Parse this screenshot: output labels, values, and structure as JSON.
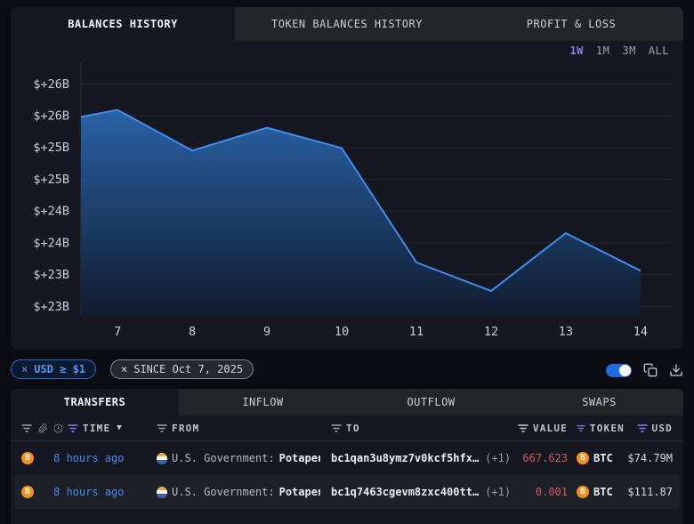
{
  "chart_card": {
    "tabs": [
      {
        "label": "BALANCES HISTORY",
        "active": true
      },
      {
        "label": "TOKEN BALANCES HISTORY",
        "active": false
      },
      {
        "label": "PROFIT & LOSS",
        "active": false
      }
    ],
    "ranges": [
      {
        "label": "1W",
        "active": true
      },
      {
        "label": "1M",
        "active": false
      },
      {
        "label": "3M",
        "active": false
      },
      {
        "label": "ALL",
        "active": false
      }
    ]
  },
  "chart_data": {
    "type": "area",
    "x": [
      6.51,
      7,
      8,
      9,
      10,
      11,
      12,
      13,
      14
    ],
    "values": [
      25.68,
      25.79,
      25.15,
      25.51,
      25.19,
      23.39,
      22.94,
      23.85,
      23.26
    ],
    "unit": "USD billions",
    "x_ticks": [
      7,
      8,
      9,
      10,
      11,
      12,
      13,
      14
    ],
    "x_tick_labels": [
      "7",
      "8",
      "9",
      "10",
      "11",
      "12",
      "13",
      "14"
    ],
    "y_ticks": [
      {
        "value": 26.2,
        "label": "$+26B"
      },
      {
        "value": 25.7,
        "label": "$+26B"
      },
      {
        "value": 25.2,
        "label": "$+25B"
      },
      {
        "value": 24.7,
        "label": "$+25B"
      },
      {
        "value": 24.2,
        "label": "$+24B"
      },
      {
        "value": 23.7,
        "label": "$+24B"
      },
      {
        "value": 23.2,
        "label": "$+23B"
      },
      {
        "value": 22.7,
        "label": "$+23B"
      }
    ],
    "xlim": [
      6.51,
      14.43
    ],
    "ylim": [
      22.55,
      26.54
    ],
    "grid": true,
    "legend": "none",
    "line_color": "#3f8cf3",
    "fill_top": "#2a66ad",
    "fill_bottom": "#111d31"
  },
  "filters": {
    "chips": [
      {
        "label": "USD ≥ $1",
        "style": "blue"
      },
      {
        "label": "SINCE Oct 7, 2025",
        "style": "gray"
      }
    ],
    "toggle_on": true
  },
  "table_card": {
    "tabs": [
      {
        "label": "TRANSFERS",
        "active": true
      },
      {
        "label": "INFLOW",
        "active": false
      },
      {
        "label": "OUTFLOW",
        "active": false
      },
      {
        "label": "SWAPS",
        "active": false
      }
    ],
    "columns": {
      "time": "TIME",
      "from": "FROM",
      "to": "TO",
      "value": "VALUE",
      "token": "TOKEN",
      "usd": "USD"
    },
    "rows": [
      {
        "chain": "BTC",
        "time": "8 hours ago",
        "from_entity": "U.S. Government:",
        "from_name": "Potapen…",
        "to_address": "bc1qan3u8ymz7v0kcf5hfx…",
        "to_extra": "(+1)",
        "value": "667.623",
        "token": "BTC",
        "usd": "$74.79M"
      },
      {
        "chain": "BTC",
        "time": "8 hours ago",
        "from_entity": "U.S. Government:",
        "from_name": "Potapen…",
        "to_address": "bc1q7463cgevm8zxc400tt…",
        "to_extra": "(+1)",
        "value": "0.001",
        "token": "BTC",
        "usd": "$111.87"
      }
    ]
  },
  "colors": {
    "accent_blue": "#3d8bf2",
    "accent_purple": "#8b7cf0",
    "negative_red": "#d65858",
    "btc_orange": "#f2921d",
    "toggle_on": "#1f6ce0",
    "card_bg": "#151821",
    "page_bg": "#0a0c12"
  }
}
